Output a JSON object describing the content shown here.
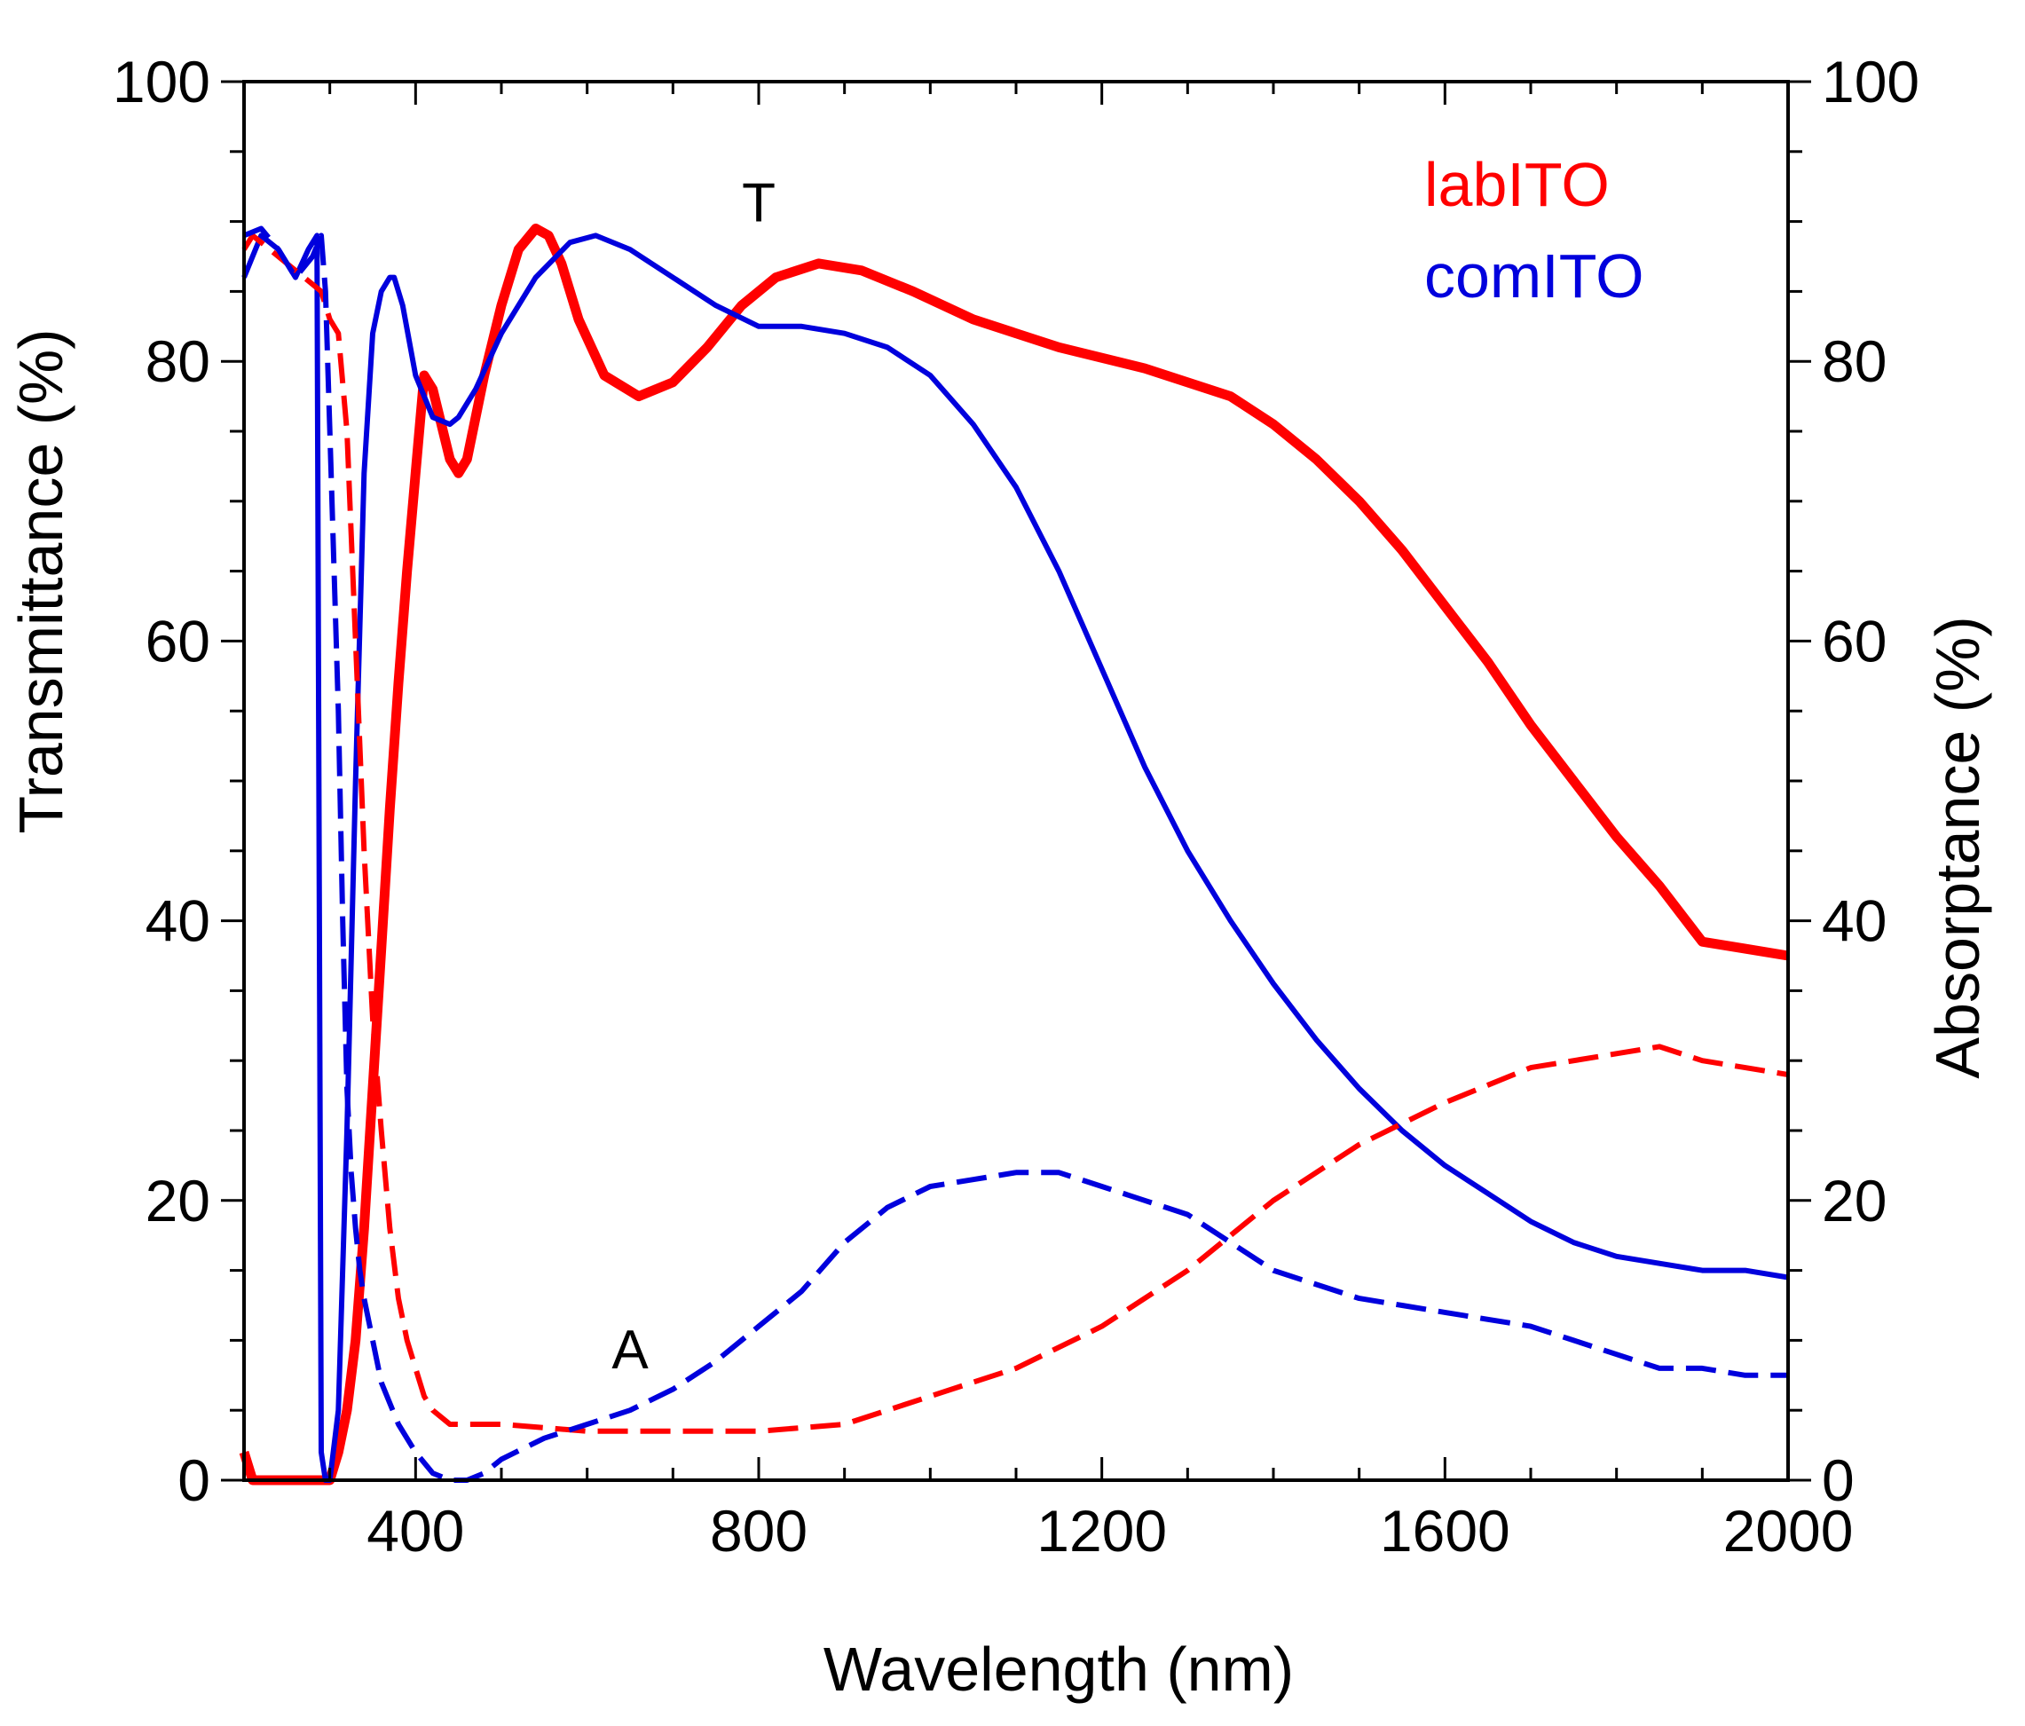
{
  "chart_data": {
    "type": "line",
    "title": "",
    "xlabel": "Wavelength (nm)",
    "ylabel": "Transmittance (%)",
    "y2label": "Absorptance (%)",
    "xlim": [
      200,
      2000
    ],
    "ylim": [
      0,
      100
    ],
    "y2lim": [
      0,
      100
    ],
    "xticks": [
      400,
      800,
      1200,
      1600,
      2000
    ],
    "yticks": [
      0,
      20,
      40,
      60,
      80,
      100
    ],
    "y2ticks": [
      0,
      20,
      40,
      60,
      80,
      100
    ],
    "legend": {
      "placement": "top-right",
      "entries": [
        {
          "label": "labITO",
          "color": "#ff0000"
        },
        {
          "label": "comITO",
          "color": "#0000dd"
        }
      ]
    },
    "annotations": [
      {
        "text": "T",
        "x": 800,
        "y": 90
      },
      {
        "text": "A",
        "x": 650,
        "y": 8
      }
    ],
    "series": [
      {
        "name": "labITO T",
        "color": "#ff0000",
        "style": "solid",
        "width": "thick",
        "axis": "left",
        "x": [
          200,
          210,
          300,
          310,
          320,
          330,
          340,
          350,
          360,
          370,
          380,
          390,
          400,
          410,
          420,
          440,
          450,
          460,
          480,
          500,
          520,
          540,
          555,
          570,
          590,
          620,
          660,
          700,
          740,
          780,
          820,
          870,
          920,
          980,
          1050,
          1150,
          1250,
          1350,
          1400,
          1450,
          1500,
          1550,
          1600,
          1650,
          1700,
          1750,
          1800,
          1850,
          1900,
          1950,
          2000
        ],
        "y": [
          2,
          0,
          0,
          2,
          5,
          10,
          18,
          28,
          38,
          48,
          57,
          65,
          72,
          79,
          78,
          73,
          72,
          73,
          79,
          84,
          88,
          89.5,
          89,
          87,
          83,
          79,
          77.5,
          78.5,
          81,
          84,
          86,
          87,
          86.5,
          85,
          83,
          81,
          79.5,
          77.5,
          75.5,
          73,
          70,
          66.5,
          62.5,
          58.5,
          54,
          50,
          46,
          42.5,
          38.5,
          38,
          37.5
        ]
      },
      {
        "name": "comITO T",
        "color": "#0000dd",
        "style": "solid",
        "width": "normal",
        "axis": "left",
        "x": [
          200,
          220,
          240,
          260,
          275,
          285,
          290,
          295,
          300,
          310,
          320,
          330,
          340,
          350,
          360,
          370,
          375,
          385,
          400,
          420,
          440,
          450,
          470,
          500,
          540,
          580,
          610,
          650,
          700,
          750,
          800,
          850,
          900,
          950,
          1000,
          1050,
          1100,
          1150,
          1200,
          1250,
          1300,
          1350,
          1400,
          1450,
          1500,
          1550,
          1600,
          1650,
          1700,
          1750,
          1800,
          1850,
          1900,
          1950,
          2000
        ],
        "y": [
          86,
          89,
          88,
          86,
          88,
          89,
          2,
          0,
          0,
          5,
          25,
          50,
          72,
          82,
          85,
          86,
          86,
          84,
          79,
          76,
          75.5,
          76,
          78,
          82,
          86,
          88.5,
          89,
          88,
          86,
          84,
          82.5,
          82.5,
          82,
          81,
          79,
          75.5,
          71,
          65,
          58,
          51,
          45,
          40,
          35.5,
          31.5,
          28,
          25,
          22.5,
          20.5,
          18.5,
          17,
          16,
          15.5,
          15,
          15,
          14.5
        ]
      },
      {
        "name": "labITO A",
        "color": "#ff0000",
        "style": "dashed",
        "width": "normal",
        "axis": "right",
        "x": [
          200,
          210,
          230,
          250,
          270,
          290,
          300,
          310,
          320,
          330,
          340,
          350,
          360,
          370,
          380,
          390,
          400,
          410,
          420,
          440,
          460,
          500,
          600,
          700,
          800,
          900,
          1000,
          1100,
          1200,
          1300,
          1400,
          1500,
          1600,
          1700,
          1800,
          1850,
          1900,
          1950,
          2000
        ],
        "y": [
          88,
          89,
          88,
          87,
          86,
          85,
          83,
          82,
          75,
          60,
          45,
          33,
          25,
          18,
          13,
          10,
          8,
          6,
          5,
          4,
          4,
          4,
          3.5,
          3.5,
          3.5,
          4,
          6,
          8,
          11,
          15,
          20,
          24,
          27,
          29.5,
          30.5,
          31,
          30,
          29.5,
          29
        ]
      },
      {
        "name": "comITO A",
        "color": "#0000dd",
        "style": "dashed",
        "width": "normal",
        "axis": "right",
        "x": [
          200,
          220,
          240,
          260,
          280,
          290,
          295,
          300,
          305,
          310,
          315,
          320,
          325,
          330,
          335,
          340,
          350,
          360,
          380,
          400,
          420,
          440,
          460,
          480,
          500,
          550,
          600,
          650,
          700,
          750,
          800,
          850,
          900,
          950,
          1000,
          1050,
          1100,
          1150,
          1200,
          1250,
          1300,
          1350,
          1400,
          1450,
          1500,
          1550,
          1600,
          1650,
          1700,
          1750,
          1800,
          1850,
          1900,
          1950,
          2000
        ],
        "y": [
          89,
          89.5,
          88,
          86,
          87.5,
          89,
          85,
          75,
          65,
          55,
          40,
          28,
          22,
          18,
          15,
          13,
          10,
          7,
          4,
          2,
          0.5,
          0,
          0,
          0.5,
          1.5,
          3,
          4,
          5,
          6.5,
          8.5,
          11,
          13.5,
          17,
          19.5,
          21,
          21.5,
          22,
          22,
          21,
          20,
          19,
          17,
          15,
          14,
          13,
          12.5,
          12,
          11.5,
          11,
          10,
          9,
          8,
          8,
          7.5,
          7.5
        ]
      }
    ]
  }
}
